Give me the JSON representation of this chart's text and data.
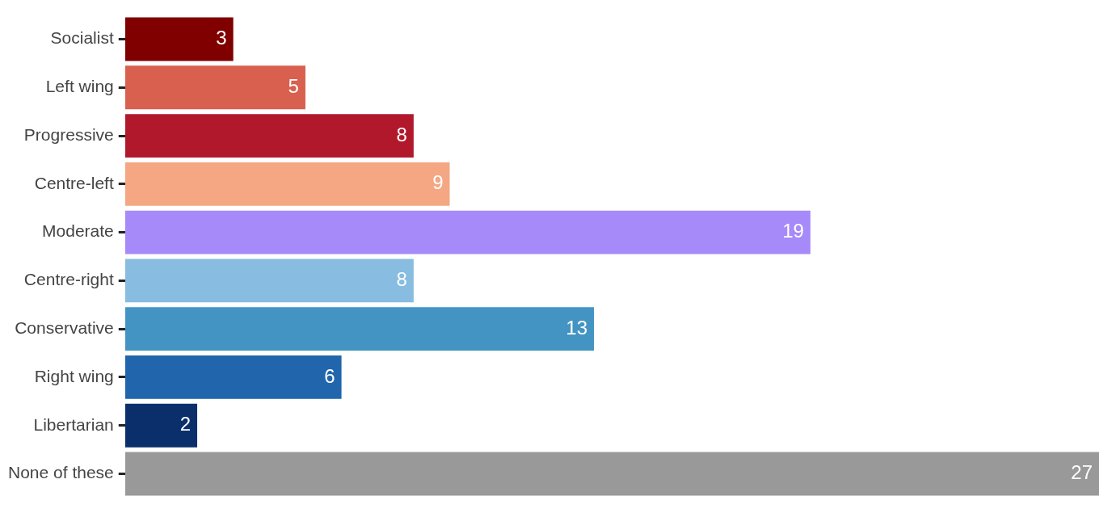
{
  "chart_data": {
    "type": "bar",
    "orientation": "horizontal",
    "data_labels": true,
    "legend": false,
    "grid": false,
    "categories": [
      "Socialist",
      "Left wing",
      "Progressive",
      "Centre-left",
      "Moderate",
      "Centre-right",
      "Conservative",
      "Right wing",
      "Libertarian",
      "None of these"
    ],
    "values": [
      3,
      5,
      8,
      9,
      19,
      8,
      13,
      6,
      2,
      27
    ],
    "colors": [
      "#800000",
      "#d95f4f",
      "#b2182b",
      "#f4a782",
      "#a68af9",
      "#88bce0",
      "#4394c3",
      "#2166ac",
      "#0a2f6b",
      "#999999"
    ]
  }
}
